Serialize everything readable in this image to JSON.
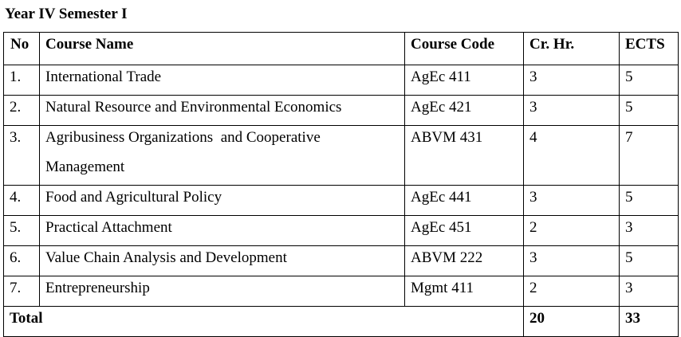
{
  "heading": "Year IV Semester I",
  "columns": {
    "no": "No",
    "name": "Course Name",
    "code": "Course Code",
    "cr": "Cr. Hr.",
    "ects": "ECTS"
  },
  "rows": [
    {
      "no": "1.",
      "name": "International Trade",
      "code": "AgEc 411",
      "cr": "3",
      "ects": "5"
    },
    {
      "no": "2.",
      "name": "Natural Resource and Environmental Economics",
      "code": "AgEc 421",
      "cr": "3",
      "ects": "5"
    },
    {
      "no": "3.",
      "name_line1": "Agribusiness Organizations  and Cooperative",
      "name_line2": "Management",
      "code": "ABVM 431",
      "cr": "4",
      "ects": "7"
    },
    {
      "no": "4.",
      "name": "Food and Agricultural Policy",
      "code": "AgEc 441",
      "cr": "3",
      "ects": "5"
    },
    {
      "no": "5.",
      "name": "Practical Attachment",
      "code": "AgEc 451",
      "cr": "2",
      "ects": "3"
    },
    {
      "no": "6.",
      "name": "Value Chain Analysis and Development",
      "code": "ABVM 222",
      "cr": "3",
      "ects": "5"
    },
    {
      "no": "7.",
      "name": "Entrepreneurship",
      "code": "Mgmt 411",
      "cr": "2",
      "ects": "3"
    }
  ],
  "total": {
    "label": "Total",
    "cr": "20",
    "ects": "33"
  }
}
